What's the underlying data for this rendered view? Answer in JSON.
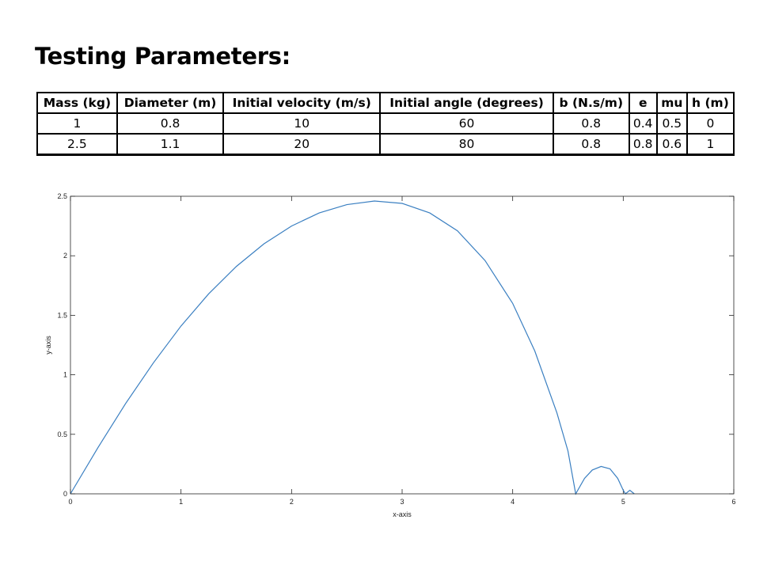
{
  "page": {
    "heading": "Testing Parameters:"
  },
  "table": {
    "headers": [
      "Mass (kg)",
      "Diameter (m)",
      "Initial velocity (m/s)",
      "Initial angle (degrees)",
      "b (N.s/m)",
      "e",
      "mu",
      "h (m)"
    ],
    "rows": [
      [
        "1",
        "0.8",
        "10",
        "60",
        "0.8",
        "0.4",
        "0.5",
        "0"
      ],
      [
        "2.5",
        "1.1",
        "20",
        "80",
        "0.8",
        "0.8",
        "0.6",
        "1"
      ]
    ]
  },
  "chart_data": {
    "type": "line",
    "title": "",
    "xlabel": "x-axis",
    "ylabel": "y-axis",
    "xlim": [
      0,
      6
    ],
    "ylim": [
      0,
      2.5
    ],
    "xticks": [
      "0",
      "1",
      "2",
      "3",
      "4",
      "5",
      "6"
    ],
    "yticks": [
      "0",
      "0.5",
      "1",
      "1.5",
      "2",
      "2.5"
    ],
    "grid": false,
    "line_color": "#3a7fc1",
    "series": [
      {
        "points": [
          [
            0,
            0
          ],
          [
            0.25,
            0.39
          ],
          [
            0.5,
            0.76
          ],
          [
            0.75,
            1.1
          ],
          [
            1.0,
            1.41
          ],
          [
            1.25,
            1.68
          ],
          [
            1.5,
            1.91
          ],
          [
            1.75,
            2.1
          ],
          [
            2.0,
            2.25
          ],
          [
            2.25,
            2.36
          ],
          [
            2.5,
            2.43
          ],
          [
            2.75,
            2.46
          ],
          [
            3.0,
            2.44
          ],
          [
            3.25,
            2.36
          ],
          [
            3.5,
            2.21
          ],
          [
            3.75,
            1.96
          ],
          [
            4.0,
            1.6
          ],
          [
            4.2,
            1.2
          ],
          [
            4.4,
            0.68
          ],
          [
            4.5,
            0.36
          ],
          [
            4.57,
            0.0
          ],
          [
            4.65,
            0.13
          ],
          [
            4.72,
            0.2
          ],
          [
            4.8,
            0.23
          ],
          [
            4.88,
            0.21
          ],
          [
            4.95,
            0.13
          ],
          [
            5.0,
            0.03
          ],
          [
            5.02,
            0.0
          ],
          [
            5.06,
            0.03
          ],
          [
            5.1,
            0.0
          ]
        ]
      }
    ]
  }
}
